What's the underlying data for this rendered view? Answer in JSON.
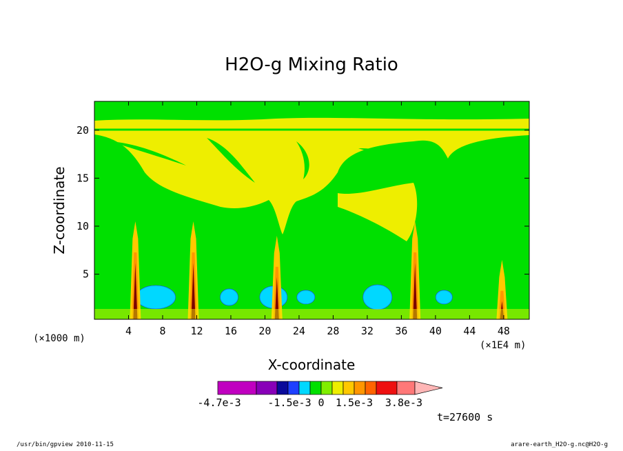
{
  "chart_data": {
    "type": "heatmap",
    "title": "H2O-g Mixing Ratio",
    "xlabel": "X-coordinate",
    "ylabel": "Z-coordinate",
    "x_units_left": "(×1000 m)",
    "x_units_right": "(×1E4 m)",
    "xlim": [
      0,
      51
    ],
    "ylim": [
      0.3,
      23
    ],
    "x_ticks": [
      4,
      8,
      12,
      16,
      20,
      24,
      28,
      32,
      36,
      40,
      44,
      48
    ],
    "y_ticks": [
      5,
      10,
      15,
      20
    ],
    "colorbar": {
      "colors": [
        "#c000c0",
        "#8800b8",
        "#0a0a9a",
        "#1e40ff",
        "#00d8ff",
        "#00e000",
        "#80ee00",
        "#eeee00",
        "#ffc800",
        "#ff9600",
        "#ff6400",
        "#ee1010",
        "#ff7878",
        "#ffb6b6"
      ],
      "tick_labels": [
        "-4.7e-3",
        "-1.5e-3",
        "0",
        "1.5e-3",
        "3.8e-3"
      ]
    },
    "time_label": "t=27600 s",
    "columns_x": [
      4.8,
      11.6,
      21.4,
      37.6,
      47.8
    ],
    "blobs_x": [
      7.2,
      21.0,
      23.8,
      33.2
    ]
  },
  "footer": {
    "left": "/usr/bin/gpview   2010-11-15",
    "right": "arare-earth_H2O-g.nc@H2O-g"
  }
}
